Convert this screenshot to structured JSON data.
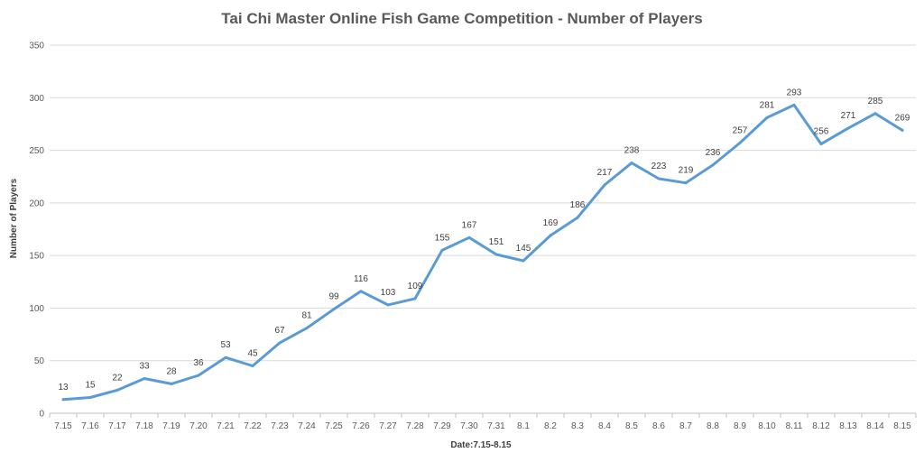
{
  "chart_data": {
    "type": "line",
    "title": "Tai Chi Master Online Fish Game Competition - Number of Players",
    "xlabel": "Date:7.15-8.15",
    "ylabel": "Number of Players",
    "ylim": [
      0,
      350
    ],
    "yticks": [
      0,
      50,
      100,
      150,
      200,
      250,
      300,
      350
    ],
    "grid": true,
    "legend": "none",
    "categories": [
      "7.15",
      "7.16",
      "7.17",
      "7.18",
      "7.19",
      "7.20",
      "7.21",
      "7.22",
      "7.23",
      "7.24",
      "7.25",
      "7.26",
      "7.27",
      "7.28",
      "7.29",
      "7.30",
      "7.31",
      "8.1",
      "8.2",
      "8.3",
      "8.4",
      "8.5",
      "8.6",
      "8.7",
      "8.8",
      "8.9",
      "8.10",
      "8.11",
      "8.12",
      "8.13",
      "8.14",
      "8.15"
    ],
    "series": [
      {
        "color": "#5b9bd5",
        "values": [
          13,
          15,
          22,
          33,
          28,
          36,
          53,
          45,
          67,
          81,
          99,
          116,
          103,
          109,
          155,
          167,
          151,
          145,
          169,
          186,
          217,
          238,
          223,
          219,
          236,
          257,
          281,
          293,
          256,
          271,
          285,
          269
        ]
      }
    ]
  }
}
